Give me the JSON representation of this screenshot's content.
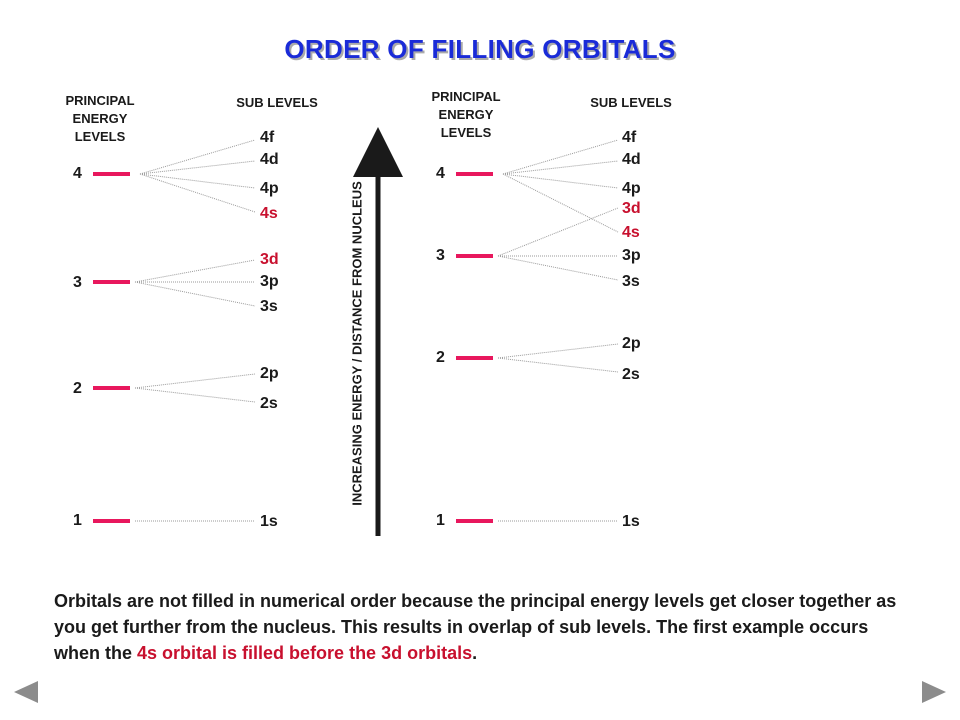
{
  "title": "ORDER OF FILLING ORBITALS",
  "headers": {
    "principal_line1": "PRINCIPAL",
    "principal_line2": "ENERGY",
    "principal_line3": "LEVELS",
    "sub_levels": "SUB LEVELS"
  },
  "axis_label": "INCREASING ENERGY / DISTANCE FROM NUCLEUS",
  "left_diagram": {
    "levels": [
      "4",
      "3",
      "2",
      "1"
    ],
    "sublevels": [
      "4f",
      "4d",
      "4p",
      "4s",
      "3d",
      "3p",
      "3s",
      "2p",
      "2s",
      "1s"
    ]
  },
  "right_diagram": {
    "levels": [
      "4",
      "3",
      "2",
      "1"
    ],
    "sublevels": [
      "4f",
      "4d",
      "4p",
      "3d",
      "4s",
      "3p",
      "3s",
      "2p",
      "2s",
      "1s"
    ]
  },
  "highlighted_sublevels": [
    "4s",
    "3d"
  ],
  "body": {
    "part1": "Orbitals are not filled in numerical order because the principal energy levels get closer together as you get further from the nucleus.  This results in overlap of sub levels. The first example occurs when the ",
    "highlight": "4s orbital is filled before the 3d orbitals",
    "part2": "."
  },
  "colors": {
    "title": "#1a2bd8",
    "level_bar": "#e8175d",
    "highlight": "#c8102e",
    "nav": "#8c8c8c"
  },
  "nav": {
    "prev_icon": "left-triangle-icon",
    "next_icon": "right-triangle-icon"
  }
}
